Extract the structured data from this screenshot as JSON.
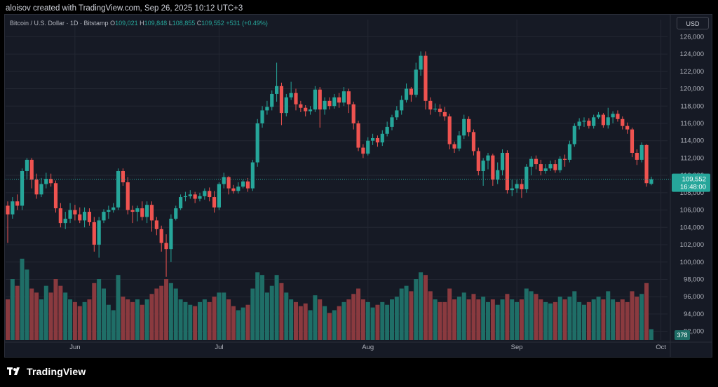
{
  "header": {
    "title": "aloisov created with TradingView.com, Sep 26, 2025 10:12 UTC+3"
  },
  "symbol": {
    "name": "Bitcoin / U.S. Dollar · 1D · Bitstamp",
    "o_label": "O",
    "o_value": "109,021",
    "h_label": "H",
    "h_value": "109,848",
    "l_label": "L",
    "l_value": "108,855",
    "c_label": "C",
    "c_value": "109,552",
    "change": "+531 (+0.49%)"
  },
  "currency_button": "USD",
  "price_tag": {
    "price": "109,552",
    "countdown": "16:48:00"
  },
  "volume_tag": "378",
  "footer": {
    "brand": "TradingView"
  },
  "colors": {
    "up": "#26a69a",
    "down": "#ef5350",
    "up_vol": "#1f6e67",
    "down_vol": "#8a3a3f",
    "background": "#161a25",
    "grid": "#232733"
  },
  "chart_data": {
    "type": "candlestick",
    "ylim": [
      91000,
      127000
    ],
    "y_ticks": [
      92000,
      94000,
      96000,
      98000,
      100000,
      102000,
      104000,
      106000,
      108000,
      110000,
      112000,
      114000,
      116000,
      118000,
      120000,
      122000,
      124000,
      126000
    ],
    "y_tick_labels": [
      "92,000",
      "94,000",
      "96,000",
      "98,000",
      "100,000",
      "102,000",
      "104,000",
      "106,000",
      "108,000",
      "110,000",
      "112,000",
      "114,000",
      "116,000",
      "118,000",
      "120,000",
      "122,000",
      "124,000",
      "126,000"
    ],
    "x_labels": [
      {
        "label": "Jun",
        "index": 14
      },
      {
        "label": "Jul",
        "index": 44
      },
      {
        "label": "Aug",
        "index": 75
      },
      {
        "label": "Sep",
        "index": 106
      },
      {
        "label": "Oct",
        "index": 136
      }
    ],
    "current_price": 109552,
    "candles": [
      [
        106500,
        105500,
        107000,
        102200,
        30
      ],
      [
        105500,
        107000,
        107500,
        105000,
        45
      ],
      [
        107000,
        106500,
        107800,
        106000,
        40
      ],
      [
        106500,
        110500,
        110800,
        106000,
        60
      ],
      [
        110500,
        111800,
        112000,
        109500,
        52
      ],
      [
        111800,
        109500,
        112000,
        108500,
        38
      ],
      [
        109500,
        107800,
        110200,
        107300,
        35
      ],
      [
        107800,
        109000,
        109700,
        107500,
        30
      ],
      [
        109000,
        109600,
        110300,
        108500,
        40
      ],
      [
        109600,
        109100,
        110200,
        108700,
        35
      ],
      [
        109100,
        106200,
        109400,
        105700,
        45
      ],
      [
        106200,
        104500,
        106800,
        104000,
        40
      ],
      [
        104500,
        105000,
        105800,
        103800,
        35
      ],
      [
        105000,
        106000,
        106800,
        104500,
        30
      ],
      [
        106000,
        105500,
        106600,
        104800,
        28
      ],
      [
        105500,
        104800,
        106300,
        104500,
        25
      ],
      [
        104800,
        105800,
        106300,
        104000,
        28
      ],
      [
        105800,
        104600,
        106200,
        104200,
        30
      ],
      [
        104600,
        102000,
        105200,
        101200,
        42
      ],
      [
        102000,
        104800,
        105200,
        100500,
        45
      ],
      [
        104800,
        105800,
        106100,
        104500,
        38
      ],
      [
        105800,
        106000,
        106500,
        105000,
        26
      ],
      [
        106000,
        106300,
        106800,
        105700,
        22
      ],
      [
        106300,
        110500,
        110800,
        106000,
        48
      ],
      [
        110500,
        109200,
        110800,
        108800,
        32
      ],
      [
        109200,
        106000,
        109800,
        105500,
        30
      ],
      [
        106000,
        105800,
        106500,
        104500,
        28
      ],
      [
        105800,
        106200,
        106500,
        104700,
        30
      ],
      [
        106200,
        105200,
        107000,
        104800,
        26
      ],
      [
        105200,
        106600,
        107000,
        104500,
        30
      ],
      [
        106600,
        104800,
        107000,
        103500,
        34
      ],
      [
        104800,
        103800,
        105200,
        103100,
        38
      ],
      [
        103800,
        102200,
        104200,
        101200,
        40
      ],
      [
        102200,
        101500,
        103200,
        98300,
        45
      ],
      [
        101500,
        105000,
        105500,
        100000,
        42
      ],
      [
        105000,
        106200,
        106500,
        104800,
        38
      ],
      [
        106200,
        107500,
        107800,
        106000,
        30
      ],
      [
        107500,
        107600,
        108100,
        107000,
        28
      ],
      [
        107600,
        107800,
        108300,
        107300,
        26
      ],
      [
        107800,
        107300,
        108100,
        106800,
        25
      ],
      [
        107300,
        107600,
        108000,
        107000,
        28
      ],
      [
        107600,
        108200,
        108500,
        107200,
        30
      ],
      [
        108200,
        107500,
        108600,
        107000,
        28
      ],
      [
        107500,
        106300,
        108200,
        105700,
        32
      ],
      [
        106300,
        109000,
        109200,
        106000,
        35
      ],
      [
        109000,
        109800,
        110300,
        108500,
        35
      ],
      [
        109800,
        108500,
        109900,
        107800,
        30
      ],
      [
        108500,
        108200,
        108900,
        107900,
        25
      ],
      [
        108200,
        108700,
        109200,
        107900,
        22
      ],
      [
        108700,
        109300,
        109500,
        108500,
        24
      ],
      [
        109300,
        108500,
        109700,
        108100,
        26
      ],
      [
        108500,
        111500,
        111800,
        108200,
        38
      ],
      [
        111500,
        116000,
        116500,
        111000,
        50
      ],
      [
        116000,
        117500,
        118000,
        115500,
        48
      ],
      [
        117500,
        117900,
        118600,
        117000,
        35
      ],
      [
        117900,
        119400,
        119800,
        117500,
        40
      ],
      [
        119400,
        120300,
        123000,
        118500,
        48
      ],
      [
        120300,
        117200,
        120700,
        115800,
        42
      ],
      [
        117200,
        119000,
        119400,
        116800,
        35
      ],
      [
        119000,
        119500,
        120800,
        118700,
        30
      ],
      [
        119500,
        118200,
        120000,
        117500,
        28
      ],
      [
        118200,
        117800,
        118600,
        117300,
        25
      ],
      [
        117800,
        117400,
        118100,
        116800,
        27
      ],
      [
        117400,
        117600,
        118000,
        117000,
        22
      ],
      [
        117600,
        119900,
        120300,
        117300,
        33
      ],
      [
        119900,
        117600,
        120200,
        115500,
        30
      ],
      [
        117600,
        118600,
        119000,
        117000,
        25
      ],
      [
        118600,
        118000,
        119000,
        117600,
        20
      ],
      [
        118000,
        119000,
        119400,
        117700,
        22
      ],
      [
        119000,
        118400,
        119500,
        117800,
        25
      ],
      [
        118400,
        119700,
        120200,
        118000,
        28
      ],
      [
        119700,
        118200,
        120000,
        117200,
        30
      ],
      [
        118200,
        116000,
        118500,
        115300,
        34
      ],
      [
        116000,
        113200,
        116300,
        112800,
        38
      ],
      [
        113200,
        112500,
        113600,
        112000,
        30
      ],
      [
        112500,
        114000,
        114400,
        112300,
        28
      ],
      [
        114000,
        114300,
        114800,
        113500,
        24
      ],
      [
        114300,
        113800,
        114600,
        113300,
        26
      ],
      [
        113800,
        114800,
        115200,
        113400,
        28
      ],
      [
        114800,
        115600,
        116200,
        114500,
        26
      ],
      [
        115600,
        116700,
        117000,
        115200,
        30
      ],
      [
        116700,
        117500,
        118000,
        116400,
        32
      ],
      [
        117500,
        118700,
        119200,
        117000,
        38
      ],
      [
        118700,
        120000,
        120600,
        118400,
        40
      ],
      [
        120000,
        119300,
        120200,
        118500,
        36
      ],
      [
        119300,
        122200,
        123000,
        119000,
        45
      ],
      [
        122200,
        123800,
        124300,
        121500,
        50
      ],
      [
        123800,
        118600,
        124300,
        117600,
        48
      ],
      [
        118600,
        117600,
        119000,
        117000,
        36
      ],
      [
        117600,
        117700,
        118300,
        117300,
        30
      ],
      [
        117700,
        117300,
        118200,
        116800,
        28
      ],
      [
        117300,
        116800,
        117900,
        116300,
        28
      ],
      [
        116800,
        113600,
        117100,
        113000,
        38
      ],
      [
        113600,
        113100,
        113900,
        112600,
        30
      ],
      [
        113100,
        114600,
        115100,
        112800,
        32
      ],
      [
        114600,
        116500,
        117000,
        114200,
        35
      ],
      [
        116500,
        115000,
        116800,
        114500,
        30
      ],
      [
        115000,
        112800,
        115300,
        112300,
        34
      ],
      [
        112800,
        110500,
        113200,
        110000,
        30
      ],
      [
        110500,
        111700,
        112000,
        108800,
        32
      ],
      [
        111700,
        112300,
        112600,
        110700,
        28
      ],
      [
        112300,
        109500,
        112500,
        108800,
        30
      ],
      [
        109500,
        110600,
        111500,
        109000,
        26
      ],
      [
        110600,
        112600,
        113000,
        110000,
        30
      ],
      [
        112600,
        108300,
        112900,
        107900,
        34
      ],
      [
        108300,
        108500,
        109500,
        107600,
        30
      ],
      [
        108500,
        109000,
        109500,
        108000,
        28
      ],
      [
        109000,
        108400,
        109600,
        107400,
        30
      ],
      [
        108400,
        111000,
        111300,
        108000,
        38
      ],
      [
        111000,
        111900,
        112200,
        110000,
        36
      ],
      [
        111900,
        111300,
        112300,
        110700,
        34
      ],
      [
        111300,
        110500,
        111800,
        110000,
        30
      ],
      [
        110500,
        110800,
        111300,
        110200,
        28
      ],
      [
        110800,
        111300,
        111700,
        110500,
        27
      ],
      [
        111300,
        110600,
        111800,
        110300,
        28
      ],
      [
        110600,
        111900,
        112200,
        110300,
        32
      ],
      [
        111900,
        111800,
        112400,
        111000,
        30
      ],
      [
        111800,
        113600,
        114000,
        111500,
        32
      ],
      [
        113600,
        115700,
        116000,
        113300,
        36
      ],
      [
        115700,
        116200,
        116600,
        115300,
        28
      ],
      [
        116200,
        116300,
        116700,
        115600,
        26
      ],
      [
        116300,
        115700,
        116600,
        115400,
        28
      ],
      [
        115700,
        116700,
        117000,
        115400,
        30
      ],
      [
        116700,
        117000,
        117300,
        116500,
        32
      ],
      [
        117000,
        115800,
        117200,
        115500,
        30
      ],
      [
        115800,
        116700,
        117800,
        115400,
        36
      ],
      [
        116700,
        117100,
        117400,
        116000,
        30
      ],
      [
        117100,
        116500,
        117500,
        116200,
        28
      ],
      [
        116500,
        115700,
        116800,
        115300,
        30
      ],
      [
        115700,
        115300,
        116100,
        114800,
        28
      ],
      [
        115300,
        112600,
        115500,
        112100,
        36
      ],
      [
        112600,
        111800,
        113000,
        111200,
        32
      ],
      [
        111800,
        113500,
        113800,
        111500,
        34
      ],
      [
        113500,
        109100,
        113600,
        108700,
        42
      ],
      [
        109021,
        109552,
        109848,
        108855,
        8
      ]
    ]
  }
}
